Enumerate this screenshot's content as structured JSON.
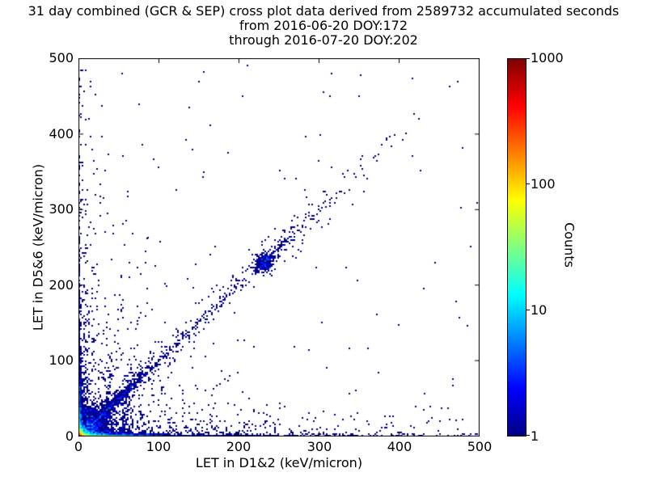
{
  "chart_data": {
    "type": "heatmap",
    "title_lines": [
      "31 day combined (GCR & SEP) cross plot data derived from 2589732 accumulated seconds",
      "from 2016-06-20 DOY:172",
      "through 2016-07-20 DOY:202"
    ],
    "accumulated_seconds": 2589732,
    "date_from": "2016-06-20",
    "doy_from": 172,
    "date_to": "2016-07-20",
    "doy_to": 202,
    "xlabel": "LET in D1&2 (keV/micron)",
    "ylabel": "LET in D5&6 (keV/micron)",
    "xlim": [
      0,
      500
    ],
    "ylim": [
      0,
      500
    ],
    "xticks": [
      0,
      100,
      200,
      300,
      400,
      500
    ],
    "yticks": [
      0,
      100,
      200,
      300,
      400,
      500
    ],
    "xtick_labels": [
      "0",
      "100",
      "200",
      "300",
      "400",
      "500"
    ],
    "ytick_labels": [
      "500",
      "400",
      "300",
      "200",
      "100",
      "0"
    ],
    "grid": false,
    "point_color_min": "#000080",
    "colorbar": {
      "label": "Counts",
      "scale": "log",
      "min": 1,
      "max": 1000,
      "tick_labels": [
        "1000",
        "100",
        "10",
        "1"
      ],
      "colormap": "jet",
      "gradient_stops": [
        "#000083 0%",
        "#0000ff 12.5%",
        "#00ffff 37.5%",
        "#ffff00 62.5%",
        "#ff0000 87.5%",
        "#800000 100%"
      ]
    },
    "seed": 1372,
    "density_model": [
      {
        "k": "core",
        "amp": 850,
        "s": 2.7
      },
      {
        "k": "core",
        "amp": 28,
        "s": 8
      },
      {
        "k": "hband",
        "amp": 90,
        "ys": 1.4,
        "xs": 30
      },
      {
        "k": "hband",
        "amp": 10,
        "ys": 1.2,
        "xs": 90
      },
      {
        "k": "hband",
        "amp": 1.15,
        "ys": 1.7,
        "xs": 400
      },
      {
        "k": "hband",
        "amp": 0.5,
        "ys": 14,
        "xs": 250
      },
      {
        "k": "vband",
        "amp": 45,
        "xs": 1.4,
        "ys": 30
      },
      {
        "k": "vband",
        "amp": 2.0,
        "xs": 1.4,
        "ys": 260
      },
      {
        "k": "vband",
        "amp": 0.45,
        "xs": 12,
        "ys": 220
      },
      {
        "k": "cloud",
        "amp": 3.0,
        "xs": 20,
        "ys": 20
      },
      {
        "k": "cloud",
        "amp": 0.5,
        "xs": 60,
        "ys": 60
      },
      {
        "k": "diag",
        "amp": 3.2,
        "w": 5,
        "ext": 55
      },
      {
        "k": "diag",
        "amp": 0.4,
        "w": 9,
        "ext": 150
      },
      {
        "k": "diagseg",
        "amp": 0.5,
        "w": 7,
        "c": 235,
        "ext": 55
      },
      {
        "k": "blob",
        "amp": 1.6,
        "cx": 231,
        "cy": 229,
        "s": 7
      },
      {
        "k": "steep",
        "amp": 1.1,
        "x0": 30,
        "inv": 0.14,
        "w": 2.5,
        "ys": 60
      },
      {
        "k": "steep",
        "amp": 0.8,
        "x0": 55,
        "inv": 0.12,
        "w": 3,
        "ys": 75
      },
      {
        "k": "uniform",
        "amp": 0.0012
      }
    ],
    "outliers": [
      [
        53,
        481
      ],
      [
        304,
        456
      ],
      [
        313,
        451
      ],
      [
        28,
        438
      ],
      [
        14,
        470
      ],
      [
        35,
        296
      ],
      [
        86,
        264
      ],
      [
        109,
        200
      ],
      [
        142,
        198
      ],
      [
        26,
        334
      ],
      [
        265,
        286
      ],
      [
        273,
        248
      ],
      [
        281,
        327
      ],
      [
        283,
        317
      ],
      [
        307,
        305
      ],
      [
        295,
        224
      ],
      [
        333,
        224
      ],
      [
        398,
        148
      ],
      [
        452,
        38
      ],
      [
        470,
        22
      ],
      [
        430,
        58
      ],
      [
        360,
        118
      ],
      [
        18,
        365
      ],
      [
        8,
        420
      ],
      [
        154,
        344
      ]
    ]
  }
}
